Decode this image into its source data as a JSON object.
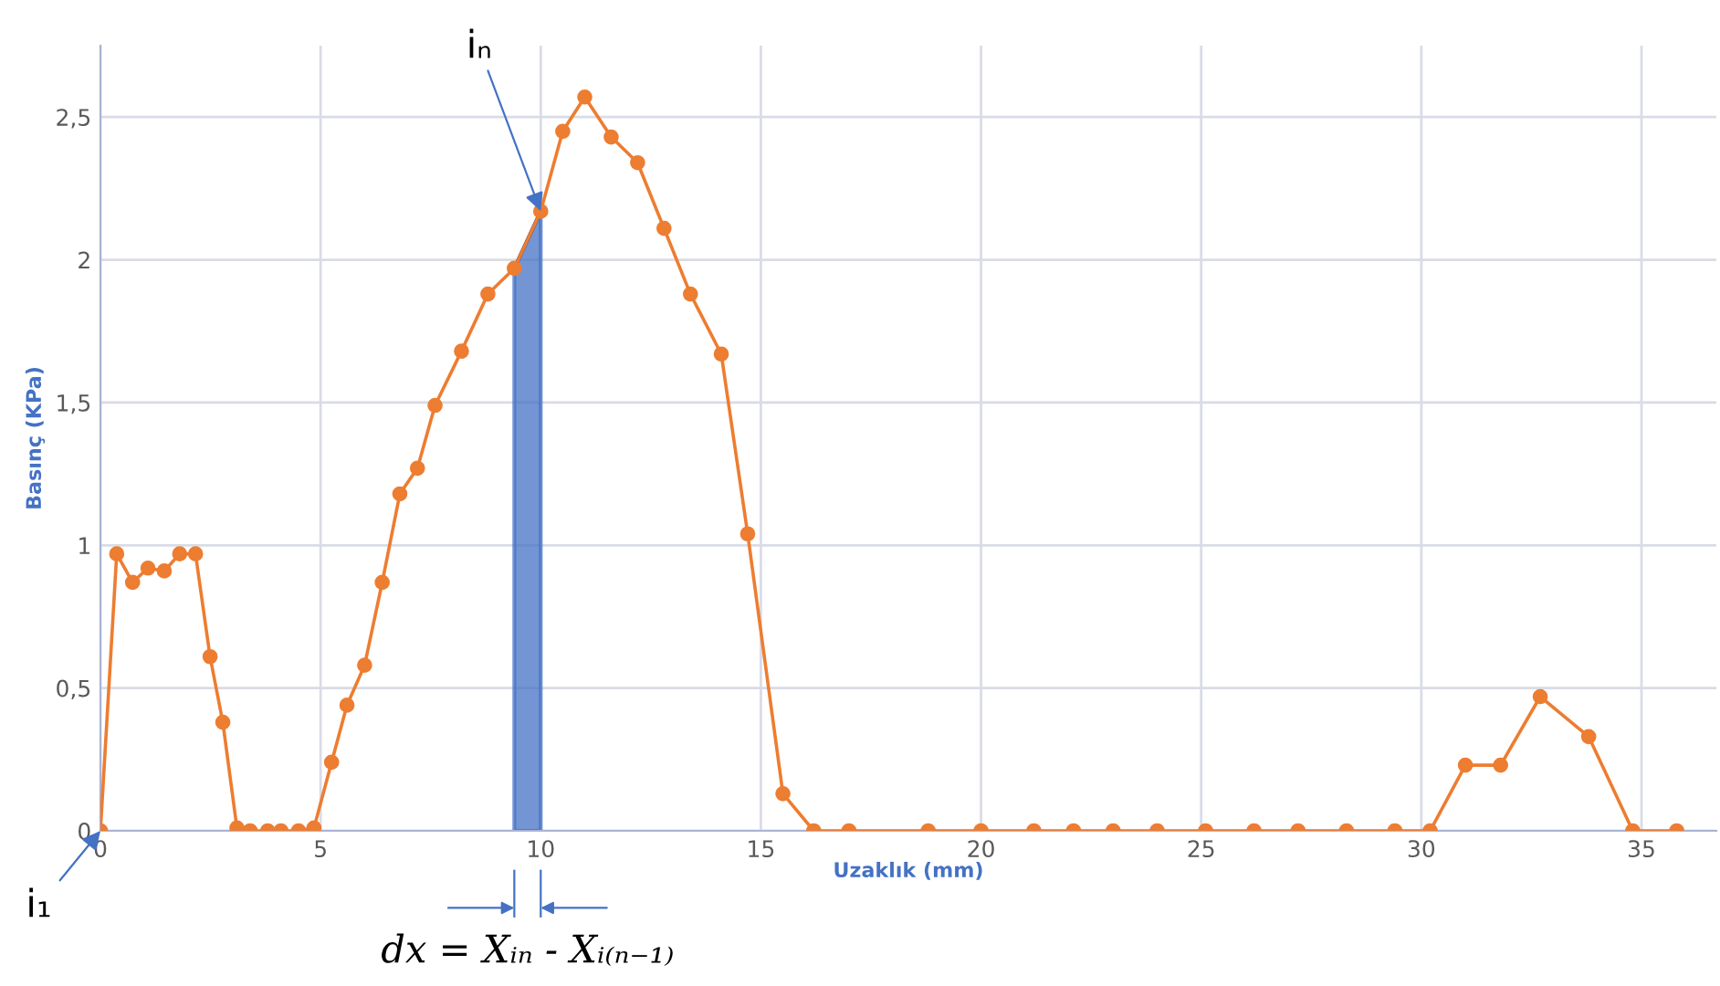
{
  "chart_data": {
    "type": "line",
    "xlabel": "Uzaklık (mm)",
    "ylabel": "Basınç (KPa)",
    "series": [
      {
        "type": "area",
        "color": "#4472c4",
        "x": [
          9.4,
          10.0
        ],
        "values": [
          1.97,
          2.17
        ]
      },
      {
        "color": "#ed7d31",
        "marker": "circle",
        "x": [
          0,
          0.37,
          0.73,
          1.08,
          1.45,
          1.8,
          2.16,
          2.49,
          2.78,
          3.1,
          3.4,
          3.8,
          4.1,
          4.5,
          4.85,
          5.25,
          5.6,
          6.0,
          6.4,
          6.8,
          7.2,
          7.6,
          8.2,
          8.8,
          9.4,
          10.0,
          10.5,
          11.0,
          11.6,
          12.2,
          12.8,
          13.4,
          14.1,
          14.7,
          15.5,
          16.2,
          17.0,
          18.8,
          20.0,
          21.2,
          22.1,
          23.0,
          24.0,
          25.1,
          26.2,
          27.2,
          28.3,
          29.4,
          30.2,
          31.0,
          31.8,
          32.7,
          33.8,
          34.8,
          35.8
        ],
        "values": [
          0,
          0.97,
          0.87,
          0.92,
          0.91,
          0.97,
          0.97,
          0.61,
          0.38,
          0.01,
          0,
          0,
          0,
          0,
          0.01,
          0.24,
          0.44,
          0.58,
          0.87,
          1.18,
          1.27,
          1.49,
          1.68,
          1.88,
          1.97,
          2.17,
          2.45,
          2.57,
          2.43,
          2.34,
          2.11,
          1.88,
          1.67,
          1.04,
          0.13,
          0,
          0,
          0,
          0,
          0,
          0,
          0,
          0,
          0,
          0,
          0,
          0,
          0,
          0,
          0.23,
          0.23,
          0.47,
          0.33,
          0,
          0
        ]
      }
    ],
    "xlim": [
      0,
      36.7
    ],
    "ylim": [
      0,
      2.75
    ],
    "xticks": [
      0,
      5,
      10,
      15,
      20,
      25,
      30,
      35
    ],
    "yticks": [
      0,
      {
        "value": 0.5,
        "label": "0,5"
      },
      1,
      {
        "value": 1.5,
        "label": "1,5"
      },
      2,
      {
        "value": 2.5,
        "label": "2,5"
      }
    ],
    "grid": true,
    "annotations": [
      {
        "text": "iₙ",
        "x": 10.0,
        "y": 2.17
      },
      {
        "text": "i₁",
        "x": 0,
        "y": 0
      },
      "dx = Xᵢₙ - Xᵢ₍ₙ₋₁₎"
    ]
  }
}
